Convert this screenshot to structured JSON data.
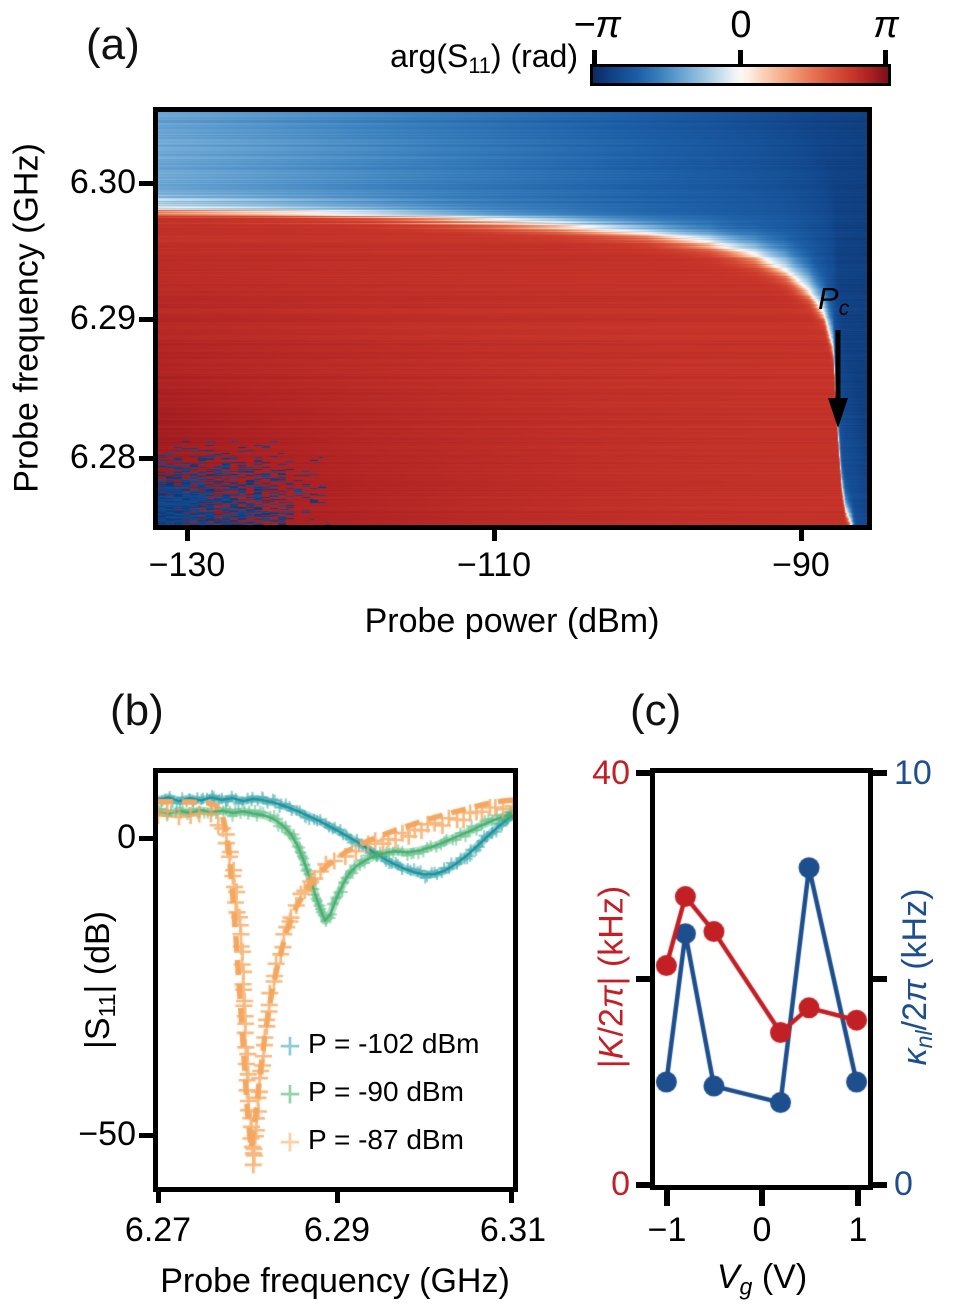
{
  "panel_a": {
    "label": "(a)",
    "colorbar": {
      "title": {
        "pre": "arg(S",
        "sub": "11",
        "post": ") (rad)"
      },
      "tick_labels": [
        "−π",
        "0",
        "π"
      ]
    },
    "xlabel": "Probe power (dBm)",
    "ylabel": "Probe frequency (GHz)",
    "xtick_labels": [
      "−130",
      "−110",
      "−90"
    ],
    "ytick_labels": [
      "6.30",
      "6.29",
      "6.28"
    ],
    "annotation": {
      "pre": "P",
      "sub": "c"
    }
  },
  "panel_b": {
    "label": "(b)",
    "xlabel": "Probe frequency (GHz)",
    "ylabel": {
      "pre": "|S",
      "sub": "11",
      "post": "| (dB)"
    },
    "xtick_labels": [
      "6.27",
      "6.29",
      "6.31"
    ],
    "ytick_labels": [
      "0",
      "−50"
    ],
    "legend": [
      {
        "marker": "+",
        "color": "#8fcdd6",
        "text": "P = -102 dBm"
      },
      {
        "marker": "+",
        "color": "#93d5a9",
        "text": "P = -90 dBm"
      },
      {
        "marker": "+",
        "color": "#fbd2a4",
        "text": "P = -87 dBm"
      }
    ]
  },
  "panel_c": {
    "label": "(c)",
    "xlabel": {
      "var": "V",
      "sub": "g",
      "post": " (V)"
    },
    "left_ylabel": {
      "p1": "|",
      "var": "K",
      "p2": "/2",
      "pi": "π",
      "p3": "| (kHz)"
    },
    "right_ylabel": {
      "var": "κ",
      "sub": "nl",
      "p2": "/2",
      "pi": "π",
      "p3": " (kHz)"
    },
    "left_axis_color": "#c32026",
    "right_axis_color": "#1d4e8d",
    "xtick_labels": [
      "−1",
      "0",
      "1"
    ],
    "left_ytick_labels": [
      "40",
      "0"
    ],
    "right_ytick_labels": [
      "10",
      "0"
    ]
  },
  "chart_data": [
    {
      "id": "panel_a_heatmap",
      "type": "heatmap",
      "title": "arg(S11) (rad)",
      "xlabel": "Probe power (dBm)",
      "ylabel": "Probe frequency (GHz)",
      "xlim": [
        -131.9,
        -85.7
      ],
      "ylim": [
        6.2751,
        6.3052
      ],
      "xticks": [
        -130,
        -110,
        -90
      ],
      "yticks": [
        6.3,
        6.29,
        6.28
      ],
      "colormap": "RdBu_r",
      "clim_rad": [
        -3.14159,
        3.14159
      ],
      "colorbar_ticks_rad": [
        -3.14159,
        0,
        3.14159
      ],
      "description": "Phase arg(S11): red (~+2.5 rad) below the power-dependent resonance, blue (light at low power, dark at high power, ~-1.2 to -2.6 rad) above it; white band along the resonance which bends down sharply near the critical power Pc ~ -87.5 dBm; noisy dark-blue speckle in the low-power low-frequency corner.",
      "resonance_curve": {
        "power_dbm": [
          -132,
          -125,
          -118,
          -112,
          -106,
          -100,
          -96,
          -93,
          -91,
          -89.5,
          -88.5,
          -87.9,
          -87.6,
          -87.35,
          -87.1,
          -86.7,
          -86.0,
          -85.7
        ],
        "freq_ghz": [
          6.2983,
          6.2981,
          6.2978,
          6.2974,
          6.297,
          6.2964,
          6.2957,
          6.2948,
          6.2937,
          6.2922,
          6.2905,
          6.288,
          6.282,
          6.278,
          6.2762,
          6.2751,
          6.2712,
          6.2695
        ]
      },
      "band_width_ghz": {
        "power_dbm": [
          -132,
          -110,
          -100,
          -94,
          -90,
          -88,
          -87.3,
          -85.7
        ],
        "blue_side": [
          0.0013,
          0.0015,
          0.0018,
          0.0028,
          0.0042,
          0.004,
          0.0028,
          0.0015
        ],
        "red_side": [
          0.0009,
          0.0011,
          0.0013,
          0.0016,
          0.0018,
          0.0014,
          0.001,
          0.0008
        ]
      },
      "phase_red_norm": 0.78,
      "blue_norm_range": [
        0.38,
        0.82
      ],
      "annotation": {
        "text": "Pc",
        "power_dbm": -87.6,
        "arrow_from_ghz": 6.2895,
        "arrow_to_ghz": 6.2825
      },
      "colormap_stops": [
        [
          -1.0,
          "#0a2d63"
        ],
        [
          -0.85,
          "#12468b"
        ],
        [
          -0.7,
          "#1d5fa7"
        ],
        [
          -0.55,
          "#3a80bd"
        ],
        [
          -0.4,
          "#69a4d3"
        ],
        [
          -0.25,
          "#9cc6e1"
        ],
        [
          -0.12,
          "#cfe2ef"
        ],
        [
          -0.04,
          "#eef4f8"
        ],
        [
          0.0,
          "#fbf7f3"
        ],
        [
          0.05,
          "#fdf0e6"
        ],
        [
          0.15,
          "#fbd3b9"
        ],
        [
          0.3,
          "#f5ab85"
        ],
        [
          0.45,
          "#ea7f5c"
        ],
        [
          0.6,
          "#dc5940"
        ],
        [
          0.75,
          "#cb382b"
        ],
        [
          0.88,
          "#ad2123"
        ],
        [
          1.0,
          "#7c1219"
        ]
      ]
    },
    {
      "id": "panel_b_spectra",
      "type": "line",
      "xlabel": "Probe frequency (GHz)",
      "ylabel": "|S11| (dB)",
      "xlim": [
        6.27,
        6.31
      ],
      "ylim": [
        -58.4,
        10.9
      ],
      "xticks": [
        6.27,
        6.29,
        6.31
      ],
      "yticks": [
        0,
        -50
      ],
      "legend_position": "lower right",
      "series": [
        {
          "name": "P = -102 dBm",
          "style": "marker-band",
          "marker": "+",
          "color": "#17929b",
          "x": [
            6.27,
            6.2712,
            6.2724,
            6.2736,
            6.2748,
            6.276,
            6.2772,
            6.2784,
            6.2796,
            6.2808,
            6.282,
            6.2832,
            6.2844,
            6.2856,
            6.2868,
            6.288,
            6.2892,
            6.2904,
            6.2916,
            6.2928,
            6.294,
            6.2952,
            6.2964,
            6.2976,
            6.2988,
            6.3,
            6.3012,
            6.3024,
            6.3036,
            6.3048,
            6.306,
            6.3072,
            6.3084,
            6.3096,
            6.31
          ],
          "y": [
            6.4,
            6.8,
            6.2,
            6.7,
            6.3,
            6.8,
            6.4,
            6.7,
            6.2,
            6.6,
            6.3,
            5.9,
            5.3,
            4.6,
            3.8,
            3.0,
            2.1,
            1.1,
            0.1,
            -1.0,
            -2.1,
            -3.2,
            -4.2,
            -5.0,
            -5.7,
            -6.1,
            -6.0,
            -5.4,
            -4.3,
            -2.9,
            -1.3,
            0.4,
            2.0,
            3.4,
            4.0
          ]
        },
        {
          "name": "P = -90 dBm",
          "style": "marker-band",
          "marker": "+",
          "color": "#44af6f",
          "x": [
            6.27,
            6.2712,
            6.2724,
            6.2736,
            6.2748,
            6.276,
            6.2772,
            6.2784,
            6.2796,
            6.2808,
            6.282,
            6.283,
            6.284,
            6.285,
            6.2858,
            6.2866,
            6.2874,
            6.2882,
            6.2888,
            6.2894,
            6.29,
            6.2908,
            6.2916,
            6.2926,
            6.2938,
            6.2952,
            6.2966,
            6.298,
            6.2994,
            6.3008,
            6.3022,
            6.3036,
            6.305,
            6.3064,
            6.3078,
            6.3092,
            6.31
          ],
          "y": [
            4.5,
            4.1,
            4.6,
            4.2,
            4.7,
            4.3,
            4.6,
            4.2,
            4.5,
            4.1,
            3.8,
            3.2,
            2.2,
            0.6,
            -1.5,
            -4.5,
            -8.0,
            -11.5,
            -13.8,
            -12.8,
            -10.5,
            -7.8,
            -5.8,
            -4.4,
            -3.4,
            -2.6,
            -2.2,
            -2.4,
            -2.1,
            -1.5,
            -0.7,
            0.2,
            1.1,
            2.1,
            3.0,
            3.8,
            4.2
          ]
        },
        {
          "name": "P = -87 dBm",
          "style": "markers",
          "marker": "+",
          "color": "#f5a75f",
          "x": [
            6.27,
            6.2712,
            6.2724,
            6.2736,
            6.2748,
            6.276,
            6.2769,
            6.2776,
            6.2782,
            6.2787,
            6.2791,
            6.2795,
            6.2799,
            6.2803,
            6.2807,
            6.2811,
            6.2816,
            6.2821,
            6.2827,
            6.2834,
            6.2842,
            6.2851,
            6.2861,
            6.2872,
            6.2884,
            6.2897,
            6.291,
            6.2924,
            6.2938,
            6.2953,
            6.2968,
            6.2983,
            6.2998,
            6.3013,
            6.3028,
            6.3043,
            6.3058,
            6.3073,
            6.3088,
            6.31
          ],
          "y": [
            4.1,
            4.4,
            3.9,
            4.3,
            4.0,
            3.7,
            2.6,
            0.2,
            -3.5,
            -8.0,
            -13.5,
            -21.0,
            -33.0,
            -47.0,
            -54.8,
            -47.0,
            -39.0,
            -32.0,
            -26.0,
            -21.0,
            -16.5,
            -12.8,
            -9.8,
            -7.4,
            -5.4,
            -3.9,
            -2.8,
            -2.0,
            -1.3,
            -0.6,
            0.1,
            0.8,
            1.5,
            2.2,
            2.9,
            3.5,
            4.1,
            4.7,
            5.2,
            5.5
          ]
        },
        {
          "name": "fit P = -87 dBm",
          "style": "dashed",
          "color": "#f5a75f",
          "x": [
            6.27,
            6.272,
            6.274,
            6.2755,
            6.2765,
            6.2772,
            6.2777,
            6.2781,
            6.2785,
            6.2789,
            6.2793,
            6.2797,
            6.2801,
            6.2805,
            6.281,
            6.2815,
            6.2821,
            6.2828,
            6.2836,
            6.2845,
            6.2856,
            6.2868,
            6.2882,
            6.2897,
            6.2913,
            6.293,
            6.2948,
            6.2967,
            6.2987,
            6.3008,
            6.303,
            6.3053,
            6.3077,
            6.31
          ],
          "y": [
            6.1,
            6.1,
            6.0,
            5.9,
            5.5,
            4.2,
            1.0,
            -4.0,
            -11.0,
            -19.0,
            -28.0,
            -37.0,
            -46.0,
            -52.0,
            -46.5,
            -39.5,
            -32.5,
            -26.0,
            -20.5,
            -15.5,
            -11.5,
            -8.3,
            -5.8,
            -3.8,
            -2.2,
            -0.9,
            0.2,
            1.3,
            2.3,
            3.3,
            4.2,
            5.1,
            6.0,
            6.4
          ]
        }
      ]
    },
    {
      "id": "panel_c_kerr",
      "type": "line",
      "xlabel": "Vg (V)",
      "x": [
        -1,
        -0.8,
        -0.5,
        0.2,
        0.5,
        1
      ],
      "xlim": [
        -1.12,
        1.12
      ],
      "xticks": [
        -1,
        0,
        1
      ],
      "left_ylabel": "|K/2π| (kHz)",
      "right_ylabel": "κnl/2π (kHz)",
      "left_ylim": [
        0,
        40
      ],
      "right_ylim": [
        0,
        10
      ],
      "left_yticks": [
        0,
        20,
        40
      ],
      "right_yticks": [
        0,
        5,
        10
      ],
      "series": [
        {
          "name": "κnl/2π (kHz)",
          "axis": "right",
          "color": "#1d4e8d",
          "marker": "circle",
          "values": [
            2.5,
            6.1,
            2.4,
            2.0,
            7.7,
            2.5
          ]
        },
        {
          "name": "|K/2π| (kHz)",
          "axis": "left",
          "color": "#c32026",
          "marker": "circle",
          "values": [
            21.3,
            28.0,
            24.6,
            14.8,
            17.2,
            16.0
          ]
        }
      ]
    }
  ]
}
